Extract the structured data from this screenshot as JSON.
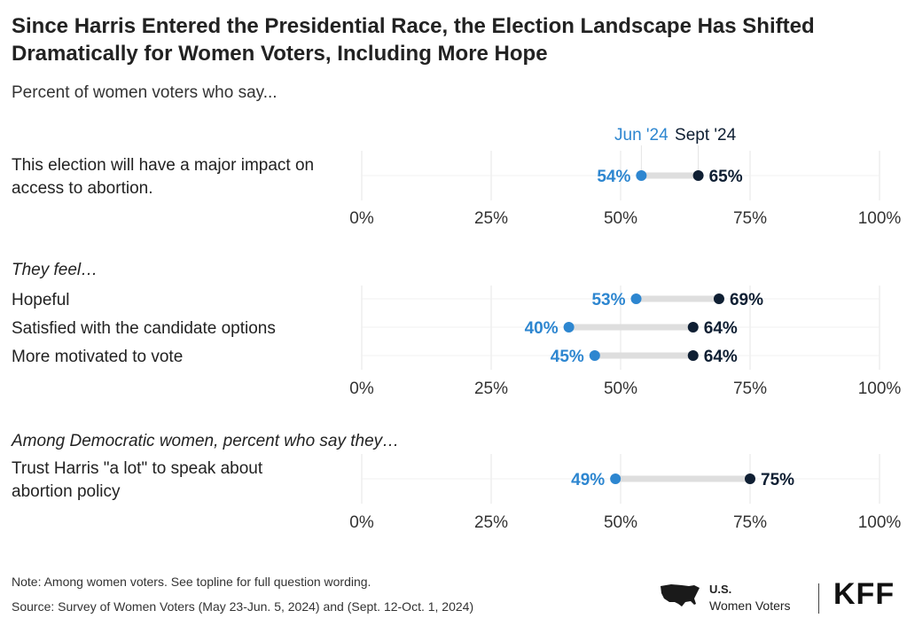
{
  "title": "Since Harris Entered the Presidential Race, the Election Landscape Has Shifted Dramatically for Women Voters, Including More Hope",
  "subtitle": "Percent of women voters who say...",
  "legend": {
    "jun": "Jun '24",
    "sept": "Sept '24"
  },
  "colors": {
    "jun": "#2d86d0",
    "sept": "#0f1f33",
    "connector": "#dedede",
    "grid": "#e4e4e4"
  },
  "chart_data": {
    "type": "dumbbell",
    "xlim": [
      0,
      100
    ],
    "x_ticks": [
      "0%",
      "25%",
      "50%",
      "75%",
      "100%"
    ],
    "series": [
      {
        "name": "Jun '24"
      },
      {
        "name": "Sept '24"
      }
    ],
    "panels": [
      {
        "heading": "",
        "rows": [
          {
            "label_lines": [
              "This election will have a major impact on",
              "access to abortion."
            ],
            "jun": 54,
            "sept": 65,
            "jun_label": "54%",
            "sept_label": "65%"
          }
        ]
      },
      {
        "heading": "They feel…",
        "rows": [
          {
            "label_lines": [
              "Hopeful"
            ],
            "jun": 53,
            "sept": 69,
            "jun_label": "53%",
            "sept_label": "69%"
          },
          {
            "label_lines": [
              "Satisfied with the candidate options"
            ],
            "jun": 40,
            "sept": 64,
            "jun_label": "40%",
            "sept_label": "64%"
          },
          {
            "label_lines": [
              "More motivated to vote"
            ],
            "jun": 45,
            "sept": 64,
            "jun_label": "45%",
            "sept_label": "64%"
          }
        ]
      },
      {
        "heading": "Among Democratic women, percent who say they…",
        "rows": [
          {
            "label_lines": [
              "Trust Harris \"a lot\" to speak about",
              "abortion policy"
            ],
            "jun": 49,
            "sept": 75,
            "jun_label": "49%",
            "sept_label": "75%"
          }
        ]
      }
    ]
  },
  "notes": {
    "note": "Note: Among women voters. See topline for full question wording.",
    "source": "Source: Survey of Women Voters (May 23-Jun. 5, 2024) and (Sept. 12-Oct. 1, 2024)"
  },
  "branding": {
    "us_line1": "U.S.",
    "us_line2": "Women Voters",
    "kff": "KFF",
    "map_icon": "us-map-icon"
  }
}
